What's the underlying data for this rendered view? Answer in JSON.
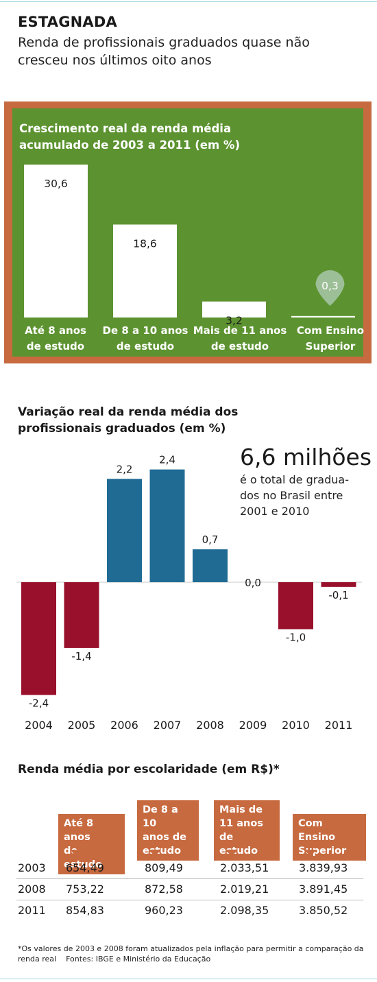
{
  "headline": "ESTAGNADA",
  "subheadline": "Renda de profissionais graduados quase não cresceu nos últimos oito anos",
  "colors": {
    "panel_border": "#c76a40",
    "panel_bg": "#5c9330",
    "pos_bar": "#1f6b94",
    "neg_bar": "#98102b",
    "header_bg": "#c76a40",
    "marker": "#9dbf97"
  },
  "chart_data": [
    {
      "type": "bar",
      "title": "Crescimento real da renda média acumulado de 2003 a 2011 (em %)",
      "categories": [
        "Até 8 anos de estudo",
        "De 8 a 10 anos de estudo",
        "Mais de 11 anos de estudo",
        "Com Ensino Superior"
      ],
      "category_lines": [
        [
          "Até 8 anos",
          "de estudo"
        ],
        [
          "De 8 a 10 anos",
          "de estudo"
        ],
        [
          "Mais de 11 anos",
          "de estudo"
        ],
        [
          "Com Ensino",
          "Superior"
        ]
      ],
      "values": [
        30.6,
        18.6,
        3.2,
        0.3
      ],
      "value_labels": [
        "30,6",
        "18,6",
        "3,2",
        "0,3"
      ],
      "grid": false
    },
    {
      "type": "bar",
      "title": "Variação real da renda média dos profissionais graduados (em %)",
      "categories": [
        "2004",
        "2005",
        "2006",
        "2007",
        "2008",
        "2009",
        "2010",
        "2011"
      ],
      "values": [
        -2.4,
        -1.4,
        2.2,
        2.4,
        0.7,
        0.0,
        -1.0,
        -0.1
      ],
      "value_labels": [
        "-2,4",
        "-1,4",
        "2,2",
        "2,4",
        "0,7",
        "0,0",
        "-1,0",
        "-0,1"
      ],
      "ylim": [
        -2.4,
        2.4
      ],
      "grid": false
    },
    {
      "type": "table",
      "title": "Renda média por escolaridade (em R$)*",
      "columns": [
        "Até 8 anos de estudo",
        "De 8 a 10 anos de estudo",
        "Mais de 11 anos de estudo",
        "Com Ensino Superior"
      ],
      "column_lines": [
        [
          "Até 8 anos",
          "de estudo"
        ],
        [
          "De 8 a 10",
          "anos de",
          "estudo"
        ],
        [
          "Mais de",
          "11 anos",
          "de estudo"
        ],
        [
          "Com Ensino",
          "Superior"
        ]
      ],
      "rows": [
        {
          "year": "2003",
          "values": [
            "654,49",
            "809,49",
            "2.033,51",
            "3.839,93"
          ]
        },
        {
          "year": "2008",
          "values": [
            "753,22",
            "872,58",
            "2.019,21",
            "3.891,45"
          ]
        },
        {
          "year": "2011",
          "values": [
            "854,83",
            "960,23",
            "2.098,35",
            "3.850,52"
          ]
        }
      ]
    }
  ],
  "callout": {
    "big_number": "6,6 milhões",
    "text": "é o total de gradua-dos no Brasil entre 2001 e 2010"
  },
  "footnote": {
    "note": "*Os valores de 2003 e 2008 foram atualizados pela inflação para permitir a comparação da renda real",
    "sources": "Fontes: IBGE e Ministério da Educação"
  }
}
